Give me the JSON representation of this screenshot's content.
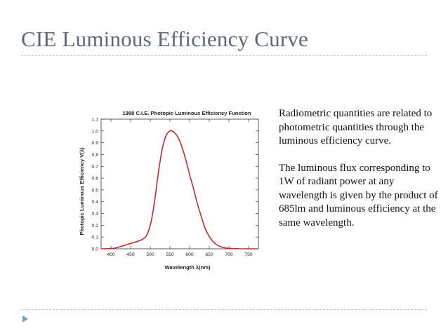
{
  "slide": {
    "title": "CIE Luminous Efficiency Curve",
    "paragraphs": [
      "Radiometric quantities are related to photometric quantities through the luminous efficiency curve.",
      "The luminous flux corresponding to 1W of radiant power at any wavelength is given by the product of 685lm and luminous efficiency at the same wavelength."
    ],
    "accent_color": "#5a6878",
    "bullet_color": "#7f9ab4"
  },
  "chart_data": {
    "type": "line",
    "title": "1988 C.I.E. Photopic Luminous Efficiency Function",
    "xlabel": "Wavelength λ(nm)",
    "ylabel": "Photopic Luminous Efficiency V(λ)",
    "xlim": [
      375,
      775
    ],
    "ylim": [
      0,
      1.1
    ],
    "xticks": [
      400,
      450,
      500,
      550,
      600,
      650,
      700,
      750
    ],
    "yticks": [
      0.0,
      0.1,
      0.2,
      0.3,
      0.4,
      0.5,
      0.6,
      0.7,
      0.8,
      0.9,
      1.0,
      1.1
    ],
    "grid": false,
    "line_color": "#c8282e",
    "series": [
      {
        "x": [
          375,
          380,
          390,
          400,
          410,
          420,
          430,
          440,
          450,
          460,
          470,
          480,
          490,
          500,
          510,
          520,
          530,
          540,
          550,
          555,
          560,
          570,
          580,
          590,
          600,
          610,
          620,
          630,
          640,
          650,
          660,
          670,
          680,
          690,
          700,
          710,
          720,
          730,
          740,
          750,
          760,
          770
        ],
        "y": [
          0.0,
          0.0,
          0.001,
          0.002,
          0.006,
          0.014,
          0.025,
          0.035,
          0.045,
          0.055,
          0.066,
          0.08,
          0.11,
          0.2,
          0.38,
          0.63,
          0.84,
          0.96,
          1.0,
          1.0,
          0.99,
          0.95,
          0.87,
          0.76,
          0.63,
          0.51,
          0.38,
          0.27,
          0.17,
          0.105,
          0.06,
          0.032,
          0.017,
          0.008,
          0.004,
          0.002,
          0.001,
          0.0,
          0.0,
          0.0,
          0.0,
          0.0
        ]
      }
    ]
  }
}
